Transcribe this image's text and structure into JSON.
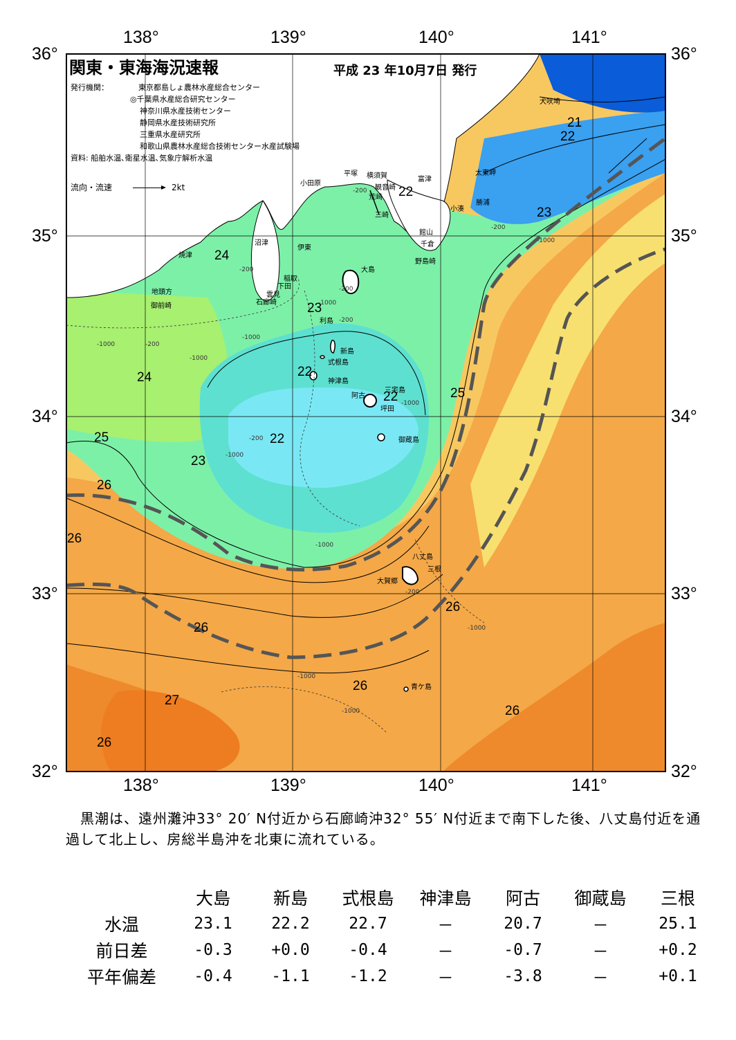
{
  "header": {
    "title": "関東・東海海況速報",
    "issue_date": "平成 23 年10月7日 発行"
  },
  "agencies": {
    "label": "発行機関：",
    "items": [
      "東京都島しょ農林水産総合センター",
      "◎千葉県水産総合研究センター",
      "神奈川県水産技術センター",
      "静岡県水産技術研究所",
      "三重県水産研究所",
      "和歌山県農林水産総合技術センター水産試験場"
    ],
    "source": "資料: 船舶水温､衛星水温､気象庁解析水温"
  },
  "legend": {
    "label": "流向・流速",
    "scale": "2kt"
  },
  "axes": {
    "longitudes": [
      "138°",
      "139°",
      "140°",
      "141°"
    ],
    "latitudes": [
      "36°",
      "35°",
      "34°",
      "33°",
      "32°"
    ]
  },
  "colors": {
    "sea_deep_blue": "#0a5cd8",
    "sea_blue": "#3aa0f0",
    "sea_cyan": "#7ae8f4",
    "sea_aqua": "#5de0d0",
    "sea_green": "#7df0a8",
    "sea_lime": "#a8f070",
    "sea_yellow": "#f8e070",
    "sea_light_orange": "#f8c860",
    "sea_orange": "#f4a848",
    "sea_dark_orange": "#ee8a2c",
    "kuroshio_line": "#555555"
  },
  "places": [
    "犬吠埼",
    "太東岬",
    "勝浦",
    "小湊",
    "富津",
    "横須賀",
    "観音崎",
    "平塚",
    "小田原",
    "荒崎",
    "三崎",
    "館山",
    "千倉",
    "野島崎",
    "大島",
    "伊東",
    "沼津",
    "焼津",
    "稲取",
    "下田",
    "雲見",
    "石廊崎",
    "地頭方",
    "御前崎",
    "利島",
    "新島",
    "式根島",
    "神津島",
    "阿古",
    "三宅島",
    "坪田",
    "御蔵島",
    "八丈島",
    "三根",
    "大賀郷",
    "青ケ島"
  ],
  "isotherms": [
    "21",
    "22",
    "22",
    "23",
    "24",
    "23",
    "22",
    "24",
    "22",
    "25",
    "22",
    "25",
    "23",
    "26",
    "26",
    "26",
    "26",
    "26",
    "27",
    "26",
    "26"
  ],
  "depth_labels": [
    "-200",
    "-1000"
  ],
  "summary": "　黒潮は、遠州灘沖33° 20′ N付近から石廊崎沖32° 55′ N付近まで南下した後、八丈島付近を通過して北上し、房総半島沖を北東に流れている。",
  "table": {
    "columns": [
      "大島",
      "新島",
      "式根島",
      "神津島",
      "阿古",
      "御蔵島",
      "三根"
    ],
    "rows": [
      {
        "label": "水温",
        "values": [
          "23.1",
          "22.2",
          "22.7",
          "－",
          "20.7",
          "－",
          "25.1"
        ]
      },
      {
        "label": "前日差",
        "values": [
          "-0.3",
          "+0.0",
          "-0.4",
          "－",
          "-0.7",
          "－",
          "+0.2"
        ]
      },
      {
        "label": "平年偏差",
        "values": [
          "-0.4",
          "-1.1",
          "-1.2",
          "－",
          "-3.8",
          "－",
          "+0.1"
        ]
      }
    ]
  }
}
